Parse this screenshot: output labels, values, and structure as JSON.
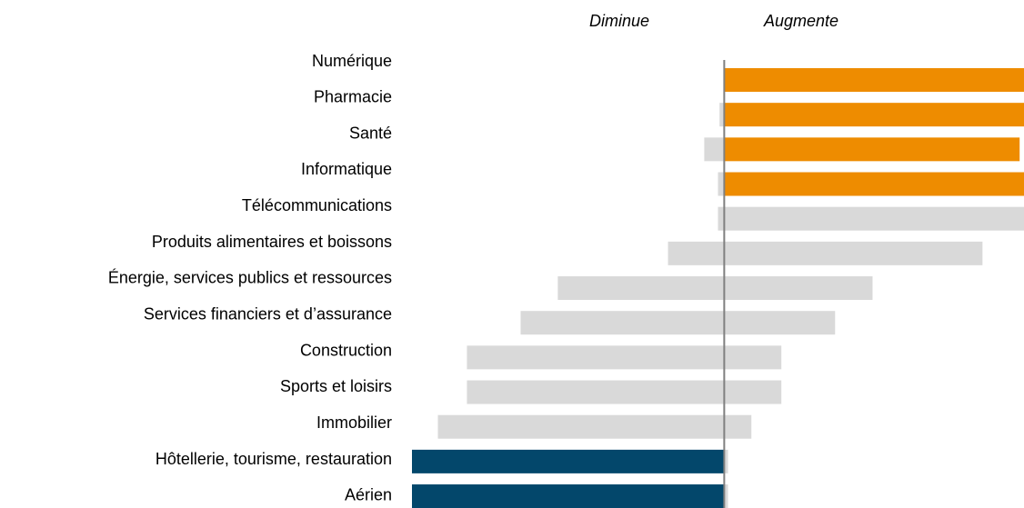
{
  "chart_data": {
    "type": "bar",
    "orientation": "horizontal",
    "categories": [
      "Numérique",
      "Pharmacie",
      "Santé",
      "Informatique",
      "Télécommunications",
      "Produits alimentaires et boissons",
      "Énergie, services publics et ressources",
      "Services financiers et d’assurance",
      "Construction",
      "Sports et loisirs",
      "Immobilier",
      "Hôtellerie, tourisme, restauration",
      "Aérien"
    ],
    "series": [
      {
        "name": "Diminue",
        "values": [
          0,
          -1.5,
          -6.4,
          -2,
          -2,
          -18,
          -53.3,
          -65.2,
          -82.4,
          -82.4,
          -91.7,
          -100,
          -100
        ],
        "colors": [
          "#d9d9d9",
          "#d9d9d9",
          "#d9d9d9",
          "#d9d9d9",
          "#d9d9d9",
          "#d9d9d9",
          "#d9d9d9",
          "#d9d9d9",
          "#d9d9d9",
          "#d9d9d9",
          "#d9d9d9",
          "#03476b",
          "#03476b"
        ]
      },
      {
        "name": "Augmente",
        "values": [
          96,
          96,
          94.6,
          96,
          96,
          82.7,
          47.5,
          35.5,
          18.3,
          18.3,
          8.7,
          1.2,
          1.2
        ],
        "colors": [
          "#ee8c00",
          "#ee8c00",
          "#ee8c00",
          "#ee8c00",
          "#d9d9d9",
          "#d9d9d9",
          "#d9d9d9",
          "#d9d9d9",
          "#d9d9d9",
          "#d9d9d9",
          "#d9d9d9",
          "#d9d9d9",
          "#d9d9d9"
        ]
      }
    ],
    "xlim": [
      -100,
      96
    ]
  }
}
